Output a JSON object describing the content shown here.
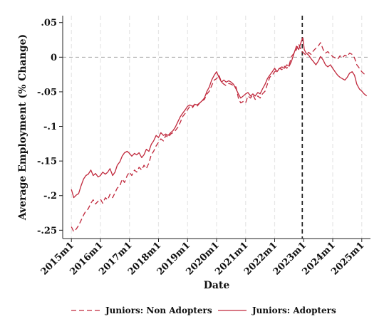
{
  "chart_data": {
    "type": "line",
    "xlabel": "Date",
    "ylabel": "Average Employment (% Change)",
    "x_tick_labels": [
      "2015m1",
      "2016m1",
      "2017m1",
      "2018m1",
      "2019m1",
      "2020m1",
      "2021m1",
      "2022m1",
      "2023m1",
      "2024m1",
      "2025m1"
    ],
    "x_tick_values": [
      2015,
      2016,
      2017,
      2018,
      2019,
      2020,
      2021,
      2022,
      2023,
      2024,
      2025
    ],
    "y_tick_labels": [
      ".05",
      "0",
      "-.05",
      "-.1",
      "-.15",
      "-.2",
      "-.25"
    ],
    "y_tick_values": [
      0.05,
      0,
      -0.05,
      -0.1,
      -0.15,
      -0.2,
      -0.25
    ],
    "xlim": [
      2014.7,
      2025.3
    ],
    "ylim": [
      -0.262,
      0.06
    ],
    "grid": "vertical",
    "reference_hline": 0,
    "reference_vline": 2022.95,
    "legend_position": "bottom",
    "series": [
      {
        "name": "Juniors: Non Adopters",
        "style": "dashed",
        "color": "#c0283c",
        "points": [
          [
            2015.0,
            -0.245
          ],
          [
            2015.08,
            -0.252
          ],
          [
            2015.17,
            -0.248
          ],
          [
            2015.25,
            -0.243
          ],
          [
            2015.33,
            -0.236
          ],
          [
            2015.42,
            -0.228
          ],
          [
            2015.5,
            -0.222
          ],
          [
            2015.58,
            -0.219
          ],
          [
            2015.67,
            -0.211
          ],
          [
            2015.75,
            -0.206
          ],
          [
            2015.83,
            -0.212
          ],
          [
            2015.92,
            -0.208
          ],
          [
            2016.0,
            -0.205
          ],
          [
            2016.08,
            -0.211
          ],
          [
            2016.17,
            -0.203
          ],
          [
            2016.25,
            -0.206
          ],
          [
            2016.33,
            -0.198
          ],
          [
            2016.42,
            -0.203
          ],
          [
            2016.5,
            -0.196
          ],
          [
            2016.58,
            -0.189
          ],
          [
            2016.67,
            -0.186
          ],
          [
            2016.75,
            -0.176
          ],
          [
            2016.83,
            -0.181
          ],
          [
            2016.92,
            -0.171
          ],
          [
            2017.0,
            -0.166
          ],
          [
            2017.08,
            -0.171
          ],
          [
            2017.17,
            -0.163
          ],
          [
            2017.25,
            -0.166
          ],
          [
            2017.33,
            -0.159
          ],
          [
            2017.42,
            -0.163
          ],
          [
            2017.5,
            -0.156
          ],
          [
            2017.58,
            -0.161
          ],
          [
            2017.67,
            -0.153
          ],
          [
            2017.75,
            -0.141
          ],
          [
            2017.83,
            -0.136
          ],
          [
            2017.92,
            -0.128
          ],
          [
            2018.0,
            -0.123
          ],
          [
            2018.08,
            -0.118
          ],
          [
            2018.17,
            -0.121
          ],
          [
            2018.25,
            -0.113
          ],
          [
            2018.33,
            -0.116
          ],
          [
            2018.42,
            -0.111
          ],
          [
            2018.5,
            -0.109
          ],
          [
            2018.58,
            -0.106
          ],
          [
            2018.67,
            -0.101
          ],
          [
            2018.75,
            -0.094
          ],
          [
            2018.83,
            -0.086
          ],
          [
            2018.92,
            -0.081
          ],
          [
            2019.0,
            -0.076
          ],
          [
            2019.08,
            -0.071
          ],
          [
            2019.17,
            -0.073
          ],
          [
            2019.25,
            -0.068
          ],
          [
            2019.33,
            -0.071
          ],
          [
            2019.42,
            -0.066
          ],
          [
            2019.5,
            -0.063
          ],
          [
            2019.58,
            -0.061
          ],
          [
            2019.67,
            -0.053
          ],
          [
            2019.75,
            -0.049
          ],
          [
            2019.83,
            -0.041
          ],
          [
            2019.92,
            -0.033
          ],
          [
            2020.0,
            -0.031
          ],
          [
            2020.08,
            -0.026
          ],
          [
            2020.17,
            -0.036
          ],
          [
            2020.25,
            -0.039
          ],
          [
            2020.33,
            -0.041
          ],
          [
            2020.42,
            -0.038
          ],
          [
            2020.5,
            -0.039
          ],
          [
            2020.58,
            -0.041
          ],
          [
            2020.67,
            -0.043
          ],
          [
            2020.75,
            -0.059
          ],
          [
            2020.83,
            -0.066
          ],
          [
            2020.92,
            -0.064
          ],
          [
            2021.0,
            -0.066
          ],
          [
            2021.08,
            -0.056
          ],
          [
            2021.17,
            -0.059
          ],
          [
            2021.25,
            -0.054
          ],
          [
            2021.33,
            -0.061
          ],
          [
            2021.42,
            -0.056
          ],
          [
            2021.5,
            -0.059
          ],
          [
            2021.58,
            -0.053
          ],
          [
            2021.67,
            -0.049
          ],
          [
            2021.75,
            -0.039
          ],
          [
            2021.83,
            -0.029
          ],
          [
            2021.92,
            -0.026
          ],
          [
            2022.0,
            -0.021
          ],
          [
            2022.08,
            -0.019
          ],
          [
            2022.17,
            -0.016
          ],
          [
            2022.25,
            -0.018
          ],
          [
            2022.33,
            -0.013
          ],
          [
            2022.42,
            -0.016
          ],
          [
            2022.5,
            -0.011
          ],
          [
            2022.58,
            0.001
          ],
          [
            2022.67,
            0.006
          ],
          [
            2022.75,
            0.011
          ],
          [
            2022.83,
            0.019
          ],
          [
            2022.92,
            0.009
          ],
          [
            2023.0,
            0.006
          ],
          [
            2023.08,
            0.003
          ],
          [
            2023.17,
            0.007
          ],
          [
            2023.25,
            0.004
          ],
          [
            2023.33,
            0.009
          ],
          [
            2023.42,
            0.013
          ],
          [
            2023.5,
            0.016
          ],
          [
            2023.58,
            0.021
          ],
          [
            2023.67,
            0.011
          ],
          [
            2023.75,
            0.006
          ],
          [
            2023.83,
            0.008
          ],
          [
            2023.92,
            0.004
          ],
          [
            2024.0,
            0.001
          ],
          [
            2024.08,
            -0.001
          ],
          [
            2024.17,
            -0.003
          ],
          [
            2024.25,
            0.002
          ],
          [
            2024.33,
            -0.001
          ],
          [
            2024.42,
            0.003
          ],
          [
            2024.5,
            0.001
          ],
          [
            2024.58,
            0.006
          ],
          [
            2024.67,
            0.004
          ],
          [
            2024.75,
            -0.001
          ],
          [
            2024.83,
            -0.011
          ],
          [
            2024.92,
            -0.016
          ],
          [
            2025.0,
            -0.021
          ],
          [
            2025.08,
            -0.024
          ],
          [
            2025.17,
            -0.026
          ]
        ]
      },
      {
        "name": "Juniors: Adopters",
        "style": "solid",
        "color": "#c0283c",
        "points": [
          [
            2015.0,
            -0.191
          ],
          [
            2015.08,
            -0.203
          ],
          [
            2015.17,
            -0.199
          ],
          [
            2015.25,
            -0.197
          ],
          [
            2015.33,
            -0.186
          ],
          [
            2015.42,
            -0.176
          ],
          [
            2015.5,
            -0.171
          ],
          [
            2015.58,
            -0.169
          ],
          [
            2015.67,
            -0.163
          ],
          [
            2015.75,
            -0.171
          ],
          [
            2015.83,
            -0.168
          ],
          [
            2015.92,
            -0.173
          ],
          [
            2016.0,
            -0.171
          ],
          [
            2016.08,
            -0.166
          ],
          [
            2016.17,
            -0.169
          ],
          [
            2016.25,
            -0.166
          ],
          [
            2016.33,
            -0.161
          ],
          [
            2016.42,
            -0.171
          ],
          [
            2016.5,
            -0.166
          ],
          [
            2016.58,
            -0.156
          ],
          [
            2016.67,
            -0.151
          ],
          [
            2016.75,
            -0.143
          ],
          [
            2016.83,
            -0.138
          ],
          [
            2016.92,
            -0.136
          ],
          [
            2017.0,
            -0.139
          ],
          [
            2017.08,
            -0.143
          ],
          [
            2017.17,
            -0.139
          ],
          [
            2017.25,
            -0.141
          ],
          [
            2017.33,
            -0.138
          ],
          [
            2017.42,
            -0.145
          ],
          [
            2017.5,
            -0.141
          ],
          [
            2017.58,
            -0.133
          ],
          [
            2017.67,
            -0.136
          ],
          [
            2017.75,
            -0.126
          ],
          [
            2017.83,
            -0.121
          ],
          [
            2017.92,
            -0.113
          ],
          [
            2018.0,
            -0.116
          ],
          [
            2018.08,
            -0.109
          ],
          [
            2018.17,
            -0.113
          ],
          [
            2018.25,
            -0.111
          ],
          [
            2018.33,
            -0.113
          ],
          [
            2018.42,
            -0.109
          ],
          [
            2018.5,
            -0.106
          ],
          [
            2018.58,
            -0.101
          ],
          [
            2018.67,
            -0.093
          ],
          [
            2018.75,
            -0.086
          ],
          [
            2018.83,
            -0.081
          ],
          [
            2018.92,
            -0.076
          ],
          [
            2019.0,
            -0.071
          ],
          [
            2019.08,
            -0.069
          ],
          [
            2019.17,
            -0.071
          ],
          [
            2019.25,
            -0.068
          ],
          [
            2019.33,
            -0.069
          ],
          [
            2019.42,
            -0.066
          ],
          [
            2019.5,
            -0.063
          ],
          [
            2019.58,
            -0.059
          ],
          [
            2019.67,
            -0.049
          ],
          [
            2019.75,
            -0.043
          ],
          [
            2019.83,
            -0.033
          ],
          [
            2019.92,
            -0.026
          ],
          [
            2020.0,
            -0.021
          ],
          [
            2020.08,
            -0.029
          ],
          [
            2020.17,
            -0.036
          ],
          [
            2020.25,
            -0.033
          ],
          [
            2020.33,
            -0.036
          ],
          [
            2020.42,
            -0.034
          ],
          [
            2020.5,
            -0.036
          ],
          [
            2020.58,
            -0.039
          ],
          [
            2020.67,
            -0.046
          ],
          [
            2020.75,
            -0.053
          ],
          [
            2020.83,
            -0.059
          ],
          [
            2020.92,
            -0.056
          ],
          [
            2021.0,
            -0.053
          ],
          [
            2021.08,
            -0.051
          ],
          [
            2021.17,
            -0.056
          ],
          [
            2021.25,
            -0.053
          ],
          [
            2021.33,
            -0.056
          ],
          [
            2021.42,
            -0.051
          ],
          [
            2021.5,
            -0.053
          ],
          [
            2021.58,
            -0.046
          ],
          [
            2021.67,
            -0.039
          ],
          [
            2021.75,
            -0.031
          ],
          [
            2021.83,
            -0.026
          ],
          [
            2021.92,
            -0.021
          ],
          [
            2022.0,
            -0.016
          ],
          [
            2022.08,
            -0.021
          ],
          [
            2022.17,
            -0.016
          ],
          [
            2022.25,
            -0.014
          ],
          [
            2022.33,
            -0.016
          ],
          [
            2022.42,
            -0.011
          ],
          [
            2022.5,
            -0.013
          ],
          [
            2022.58,
            -0.006
          ],
          [
            2022.67,
            0.006
          ],
          [
            2022.75,
            0.016
          ],
          [
            2022.83,
            0.011
          ],
          [
            2022.92,
            0.023
          ],
          [
            2022.97,
            0.028
          ],
          [
            2023.02,
            0.011
          ],
          [
            2023.08,
            0.006
          ],
          [
            2023.17,
            0.003
          ],
          [
            2023.25,
            -0.002
          ],
          [
            2023.33,
            -0.006
          ],
          [
            2023.42,
            -0.011
          ],
          [
            2023.5,
            -0.006
          ],
          [
            2023.58,
            0.001
          ],
          [
            2023.67,
            -0.004
          ],
          [
            2023.75,
            -0.011
          ],
          [
            2023.83,
            -0.014
          ],
          [
            2023.92,
            -0.011
          ],
          [
            2024.0,
            -0.016
          ],
          [
            2024.08,
            -0.021
          ],
          [
            2024.17,
            -0.026
          ],
          [
            2024.25,
            -0.029
          ],
          [
            2024.33,
            -0.031
          ],
          [
            2024.42,
            -0.033
          ],
          [
            2024.5,
            -0.029
          ],
          [
            2024.58,
            -0.023
          ],
          [
            2024.67,
            -0.021
          ],
          [
            2024.75,
            -0.026
          ],
          [
            2024.83,
            -0.039
          ],
          [
            2024.92,
            -0.046
          ],
          [
            2025.0,
            -0.049
          ],
          [
            2025.08,
            -0.053
          ],
          [
            2025.17,
            -0.056
          ]
        ]
      }
    ]
  }
}
